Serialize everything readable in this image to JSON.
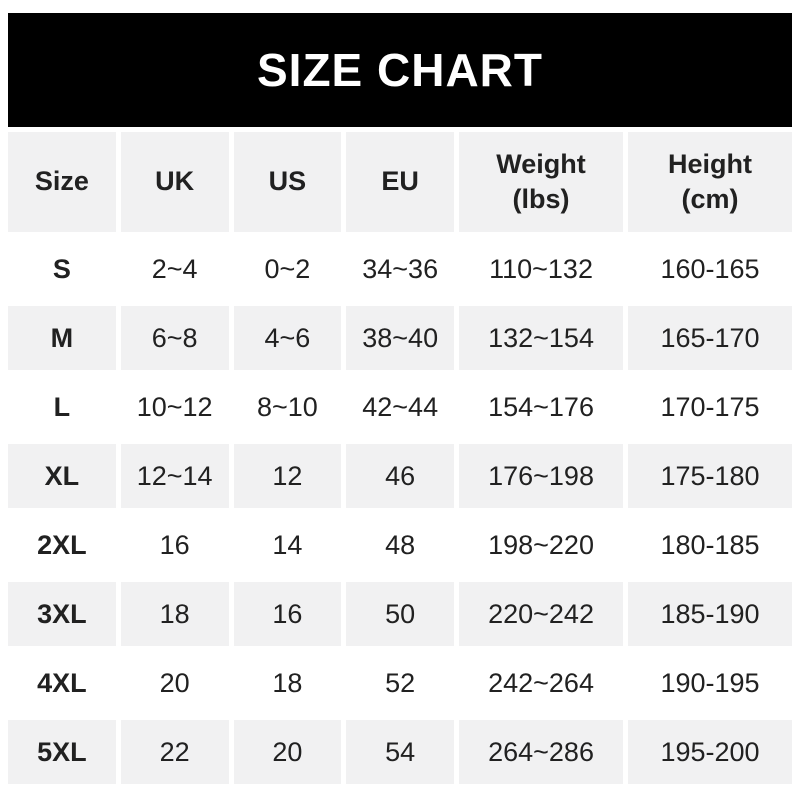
{
  "banner": {
    "title": "SIZE CHART"
  },
  "colors": {
    "banner_bg": "#000000",
    "banner_fg": "#ffffff",
    "row_alt_bg": "#f1f1f2",
    "text": "#212121"
  },
  "chart_data": {
    "type": "table",
    "title": "SIZE CHART",
    "columns": [
      {
        "label": "Size",
        "display": "Size"
      },
      {
        "label": "UK",
        "display": "UK"
      },
      {
        "label": "US",
        "display": "US"
      },
      {
        "label": "EU",
        "display": "EU"
      },
      {
        "label": "Weight (lbs)",
        "display": "Weight\n(lbs)"
      },
      {
        "label": "Height (cm)",
        "display": "Height\n(cm)"
      }
    ],
    "row_keys": [
      "size",
      "uk",
      "us",
      "eu",
      "weight_lbs",
      "height_cm"
    ],
    "rows": [
      {
        "size": "S",
        "uk": "2~4",
        "us": "0~2",
        "eu": "34~36",
        "weight_lbs": "110~132",
        "height_cm": "160-165"
      },
      {
        "size": "M",
        "uk": "6~8",
        "us": "4~6",
        "eu": "38~40",
        "weight_lbs": "132~154",
        "height_cm": "165-170"
      },
      {
        "size": "L",
        "uk": "10~12",
        "us": "8~10",
        "eu": "42~44",
        "weight_lbs": "154~176",
        "height_cm": "170-175"
      },
      {
        "size": "XL",
        "uk": "12~14",
        "us": "12",
        "eu": "46",
        "weight_lbs": "176~198",
        "height_cm": "175-180"
      },
      {
        "size": "2XL",
        "uk": "16",
        "us": "14",
        "eu": "48",
        "weight_lbs": "198~220",
        "height_cm": "180-185"
      },
      {
        "size": "3XL",
        "uk": "18",
        "us": "16",
        "eu": "50",
        "weight_lbs": "220~242",
        "height_cm": "185-190"
      },
      {
        "size": "4XL",
        "uk": "20",
        "us": "18",
        "eu": "52",
        "weight_lbs": "242~264",
        "height_cm": "190-195"
      },
      {
        "size": "5XL",
        "uk": "22",
        "us": "20",
        "eu": "54",
        "weight_lbs": "264~286",
        "height_cm": "195-200"
      }
    ]
  }
}
